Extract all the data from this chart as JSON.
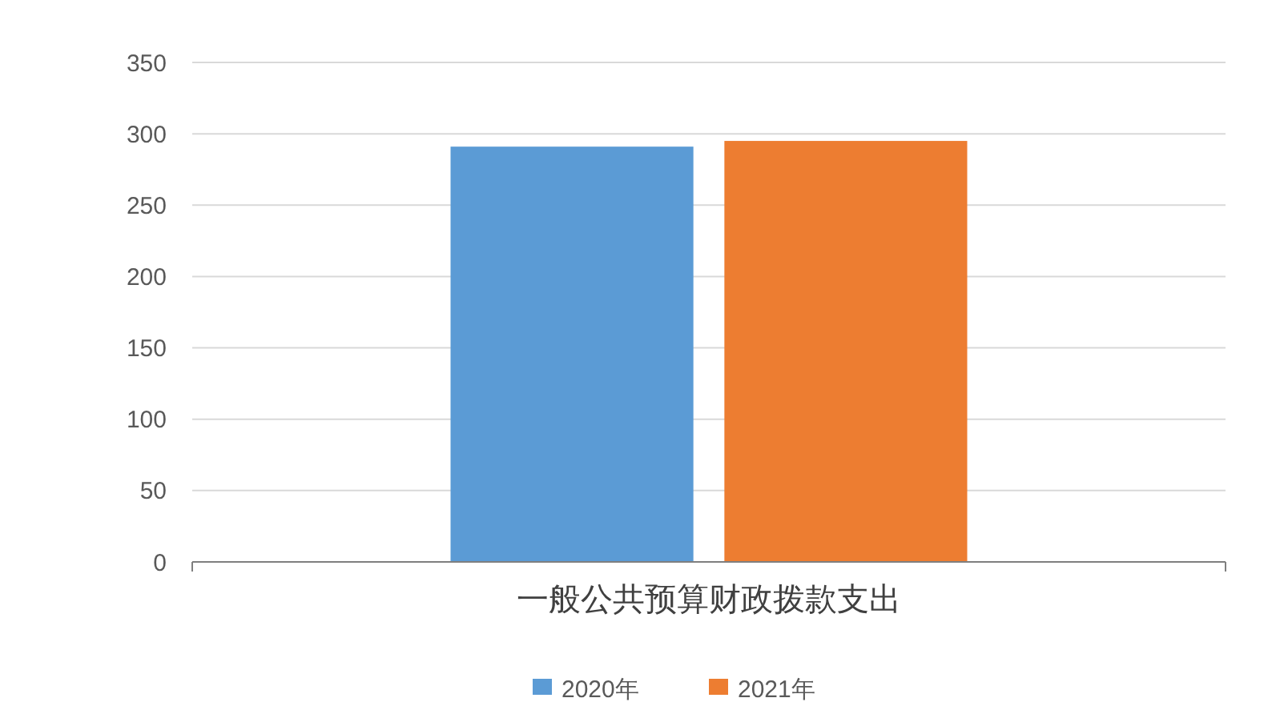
{
  "chart_data": {
    "type": "bar",
    "categories": [
      "一般公共预算财政拨款支出"
    ],
    "series": [
      {
        "name": "2020年",
        "color": "#5b9bd5",
        "values": [
          291
        ]
      },
      {
        "name": "2021年",
        "color": "#ed7d31",
        "values": [
          295
        ]
      }
    ],
    "ylim": [
      0,
      350
    ],
    "yticks": [
      0,
      50,
      100,
      150,
      200,
      250,
      300,
      350
    ],
    "grid": "y",
    "legend": "bottom"
  }
}
